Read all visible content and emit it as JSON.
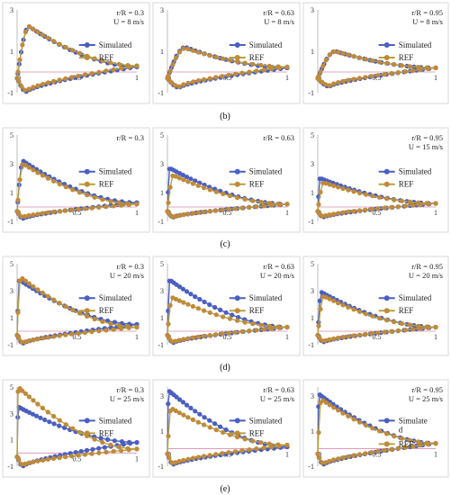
{
  "captions": [
    "(b)",
    "(c)",
    "(d)",
    "(e)"
  ],
  "colors": {
    "simulated": "#4a5fc1",
    "ref": "#b8a23a",
    "ref_marker": "#c08a3a",
    "axis": "#bcbcbc",
    "zero_line": "#d98cb3",
    "border": "#d9d9d9"
  },
  "chart_data": [
    {
      "type": "line",
      "labels": [
        "r/R = 0.3",
        "U = 8 m/s"
      ],
      "legend": [
        "Simulated",
        "REF"
      ],
      "x_ticks": [
        0.5,
        1
      ],
      "y_ticks": [
        -1,
        1,
        3
      ],
      "xlim": [
        0,
        1
      ],
      "ylim": [
        -1,
        3
      ],
      "series": [
        {
          "name": "Simulated",
          "peak": 2.2,
          "peak_x": 0.1,
          "te": 0.25,
          "low": -0.95,
          "low_x": 0.08
        },
        {
          "name": "REF",
          "peak": 2.2,
          "peak_x": 0.1,
          "te": 0.3,
          "low": -0.9,
          "low_x": 0.08
        }
      ]
    },
    {
      "type": "line",
      "labels": [
        "r/R = 0.63",
        "U = 8 m/s"
      ],
      "legend": [
        "Simulated",
        "REF"
      ],
      "x_ticks": [
        0.5,
        1
      ],
      "y_ticks": [
        -1,
        1,
        3
      ],
      "xlim": [
        0,
        1
      ],
      "ylim": [
        -1,
        3
      ],
      "series": [
        {
          "name": "Simulated",
          "peak": 1.2,
          "peak_x": 0.15,
          "te": 0.2,
          "low": -0.75,
          "low_x": 0.1
        },
        {
          "name": "REF",
          "peak": 1.15,
          "peak_x": 0.15,
          "te": 0.25,
          "low": -0.7,
          "low_x": 0.1
        }
      ]
    },
    {
      "type": "line",
      "labels": [
        "r/R = 0.95",
        "U = 8 m/s"
      ],
      "legend": [
        "Simulated",
        "REF"
      ],
      "x_ticks": [
        0.5,
        1
      ],
      "y_ticks": [
        -1,
        1,
        3
      ],
      "xlim": [
        0,
        1
      ],
      "ylim": [
        -1,
        3
      ],
      "series": [
        {
          "name": "Simulated",
          "peak": 1.0,
          "peak_x": 0.15,
          "te": 0.2,
          "low": -0.7,
          "low_x": 0.1
        },
        {
          "name": "REF",
          "peak": 1.0,
          "peak_x": 0.15,
          "te": 0.2,
          "low": -0.65,
          "low_x": 0.1
        }
      ]
    },
    {
      "type": "line",
      "labels": [
        "r/R = 0.3"
      ],
      "legend": [
        "Simulated",
        "REF"
      ],
      "x_ticks": [
        0.5,
        1
      ],
      "y_ticks": [
        -1,
        1,
        3,
        5
      ],
      "xlim": [
        0,
        1
      ],
      "ylim": [
        -1,
        5
      ],
      "series": [
        {
          "name": "Simulated",
          "peak": 3.2,
          "peak_x": 0.05,
          "te": 0.3,
          "low": -0.8,
          "low_x": 0.05
        },
        {
          "name": "REF",
          "peak": 3.0,
          "peak_x": 0.05,
          "te": 0.2,
          "low": -0.7,
          "low_x": 0.05
        }
      ]
    },
    {
      "type": "line",
      "labels": [
        "r/R = 0.63"
      ],
      "legend": [
        "Simulated",
        "REF"
      ],
      "x_ticks": [
        0.5,
        1
      ],
      "y_ticks": [
        -1,
        1,
        3,
        5
      ],
      "xlim": [
        0,
        1
      ],
      "ylim": [
        -1,
        5
      ],
      "series": [
        {
          "name": "Simulated",
          "peak": 2.7,
          "peak_x": 0.02,
          "te": 0.2,
          "low": -0.7,
          "low_x": 0.05
        },
        {
          "name": "REF",
          "peak": 2.2,
          "peak_x": 0.05,
          "te": 0.2,
          "low": -0.7,
          "low_x": 0.05
        }
      ]
    },
    {
      "type": "line",
      "labels": [
        "r/R = 0.95",
        "U = 15 m/s"
      ],
      "legend": [
        "Simulated",
        "REF"
      ],
      "x_ticks": [
        0.5,
        1
      ],
      "y_ticks": [
        -1,
        1,
        3,
        5
      ],
      "xlim": [
        0,
        1
      ],
      "ylim": [
        -1,
        5
      ],
      "series": [
        {
          "name": "Simulated",
          "peak": 2.0,
          "peak_x": 0.02,
          "te": 0.25,
          "low": -0.7,
          "low_x": 0.05
        },
        {
          "name": "REF",
          "peak": 1.7,
          "peak_x": 0.05,
          "te": 0.25,
          "low": -0.65,
          "low_x": 0.05
        }
      ]
    },
    {
      "type": "line",
      "labels": [
        "r/R = 0.3",
        "U = 20 m/s"
      ],
      "legend": [
        "Simulated",
        "REF"
      ],
      "x_ticks": [
        0.5,
        1
      ],
      "y_ticks": [
        -1,
        1,
        3,
        5
      ],
      "xlim": [
        0,
        1
      ],
      "ylim": [
        -1,
        5
      ],
      "series": [
        {
          "name": "Simulated",
          "peak": 3.8,
          "peak_x": 0.02,
          "te": 0.5,
          "low": -0.9,
          "low_x": 0.05
        },
        {
          "name": "REF",
          "peak": 4.0,
          "peak_x": 0.03,
          "te": 0.3,
          "low": -0.85,
          "low_x": 0.05
        }
      ]
    },
    {
      "type": "line",
      "labels": [
        "r/R = 0.63",
        "U = 20 m/s"
      ],
      "legend": [
        "Simulated",
        "REF"
      ],
      "x_ticks": [
        0.5,
        1
      ],
      "y_ticks": [
        -1,
        1,
        3,
        5
      ],
      "xlim": [
        0,
        1
      ],
      "ylim": [
        -1,
        5
      ],
      "series": [
        {
          "name": "Simulated",
          "peak": 3.8,
          "peak_x": 0.02,
          "te": 0.3,
          "low": -0.85,
          "low_x": 0.05
        },
        {
          "name": "REF",
          "peak": 2.5,
          "peak_x": 0.04,
          "te": 0.3,
          "low": -0.8,
          "low_x": 0.05
        }
      ]
    },
    {
      "type": "line",
      "labels": [
        "r/R = 0.95",
        "U = 20 m/s"
      ],
      "legend": [
        "Simulated",
        "REF"
      ],
      "x_ticks": [
        0.5,
        1
      ],
      "y_ticks": [
        -1,
        1,
        3,
        5
      ],
      "xlim": [
        0,
        1
      ],
      "ylim": [
        -1,
        5
      ],
      "series": [
        {
          "name": "Simulated",
          "peak": 2.9,
          "peak_x": 0.03,
          "te": 0.3,
          "low": -0.8,
          "low_x": 0.05
        },
        {
          "name": "REF",
          "peak": 2.6,
          "peak_x": 0.05,
          "te": 0.3,
          "low": -0.75,
          "low_x": 0.05
        }
      ]
    },
    {
      "type": "line",
      "labels": [
        "r/R = 0.3",
        "U = 25 m/s"
      ],
      "legend": [
        "Simulated",
        "REF"
      ],
      "x_ticks": [
        0.5,
        1
      ],
      "y_ticks": [
        -1,
        1,
        3,
        5
      ],
      "xlim": [
        0,
        1
      ],
      "ylim": [
        -1,
        5
      ],
      "series": [
        {
          "name": "Simulated",
          "peak": 3.5,
          "peak_x": 0.01,
          "te": 0.8,
          "low": -1.0,
          "low_x": 0.05
        },
        {
          "name": "REF",
          "peak": 5.0,
          "peak_x": 0.01,
          "te": 0.3,
          "low": -0.9,
          "low_x": 0.05
        }
      ]
    },
    {
      "type": "line",
      "labels": [
        "r/R = 0.63",
        "U = 25 m/s"
      ],
      "legend": [
        "Simulated",
        "REF"
      ],
      "x_ticks": [
        0.5,
        1
      ],
      "y_ticks": [
        -1,
        1,
        3
      ],
      "xlim": [
        0,
        1
      ],
      "ylim": [
        -1,
        3.5
      ],
      "series": [
        {
          "name": "Simulated",
          "peak": 3.3,
          "peak_x": 0.01,
          "te": 0.1,
          "low": -0.9,
          "low_x": 0.05
        },
        {
          "name": "REF",
          "peak": 2.3,
          "peak_x": 0.03,
          "te": 0.2,
          "low": -0.85,
          "low_x": 0.05
        }
      ]
    },
    {
      "type": "line",
      "labels": [
        "r/R = 0.95",
        "U = 25 m/s"
      ],
      "legend": [
        "Simulate",
        "d",
        "REF"
      ],
      "x_ticks": [
        0.5,
        1
      ],
      "y_ticks": [
        -1,
        1,
        3
      ],
      "xlim": [
        0,
        1
      ],
      "ylim": [
        -1,
        3.5
      ],
      "series": [
        {
          "name": "Simulated",
          "peak": 3.1,
          "peak_x": 0.01,
          "te": 0.3,
          "low": -0.9,
          "low_x": 0.05
        },
        {
          "name": "REF",
          "peak": 2.8,
          "peak_x": 0.03,
          "te": 0.3,
          "low": -0.85,
          "low_x": 0.05
        }
      ]
    }
  ]
}
